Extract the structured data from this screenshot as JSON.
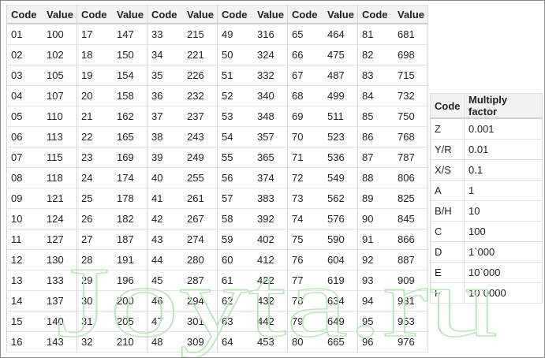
{
  "main_table": {
    "headers": [
      "Code",
      "Value",
      "Code",
      "Value",
      "Code",
      "Value",
      "Code",
      "Value",
      "Code",
      "Value",
      "Code",
      "Value"
    ],
    "rows": [
      [
        "01",
        100,
        "17",
        147,
        "33",
        215,
        "49",
        316,
        "65",
        464,
        "81",
        681
      ],
      [
        "02",
        102,
        "18",
        150,
        "34",
        221,
        "50",
        324,
        "66",
        475,
        "82",
        698
      ],
      [
        "03",
        105,
        "19",
        154,
        "35",
        226,
        "51",
        332,
        "67",
        487,
        "83",
        715
      ],
      [
        "04",
        107,
        "20",
        158,
        "36",
        232,
        "52",
        340,
        "68",
        499,
        "84",
        732
      ],
      [
        "05",
        110,
        "21",
        162,
        "37",
        237,
        "53",
        348,
        "69",
        511,
        "85",
        750
      ],
      [
        "06",
        113,
        "22",
        165,
        "38",
        243,
        "54",
        357,
        "70",
        523,
        "86",
        768
      ],
      [
        "07",
        115,
        "23",
        169,
        "39",
        249,
        "55",
        365,
        "71",
        536,
        "87",
        787
      ],
      [
        "08",
        118,
        "24",
        174,
        "40",
        255,
        "56",
        374,
        "72",
        549,
        "88",
        806
      ],
      [
        "09",
        121,
        "25",
        178,
        "41",
        261,
        "57",
        383,
        "73",
        562,
        "89",
        825
      ],
      [
        "10",
        124,
        "26",
        182,
        "42",
        267,
        "58",
        392,
        "74",
        576,
        "90",
        845
      ],
      [
        "11",
        127,
        "27",
        187,
        "43",
        274,
        "59",
        402,
        "75",
        590,
        "91",
        866
      ],
      [
        "12",
        130,
        "28",
        191,
        "44",
        280,
        "60",
        412,
        "76",
        604,
        "92",
        887
      ],
      [
        "13",
        133,
        "29",
        196,
        "45",
        287,
        "61",
        422,
        "77",
        619,
        "93",
        909
      ],
      [
        "14",
        137,
        "30",
        200,
        "46",
        294,
        "62",
        432,
        "78",
        634,
        "94",
        931
      ],
      [
        "15",
        140,
        "31",
        205,
        "47",
        301,
        "63",
        442,
        "79",
        649,
        "95",
        953
      ],
      [
        "16",
        143,
        "32",
        210,
        "48",
        309,
        "64",
        453,
        "80",
        665,
        "96",
        976
      ]
    ]
  },
  "multiplier_table": {
    "headers": [
      "Code",
      "Multiply factor"
    ],
    "rows": [
      [
        "Z",
        "0.001"
      ],
      [
        "Y/R",
        "0.01"
      ],
      [
        "X/S",
        "0.1"
      ],
      [
        "A",
        "1"
      ],
      [
        "B/H",
        "10"
      ],
      [
        "C",
        "100"
      ],
      [
        "D",
        "1`000"
      ],
      [
        "E",
        "10`000"
      ],
      [
        "F",
        "10`0000"
      ]
    ]
  },
  "watermark": "Joyta.ru"
}
